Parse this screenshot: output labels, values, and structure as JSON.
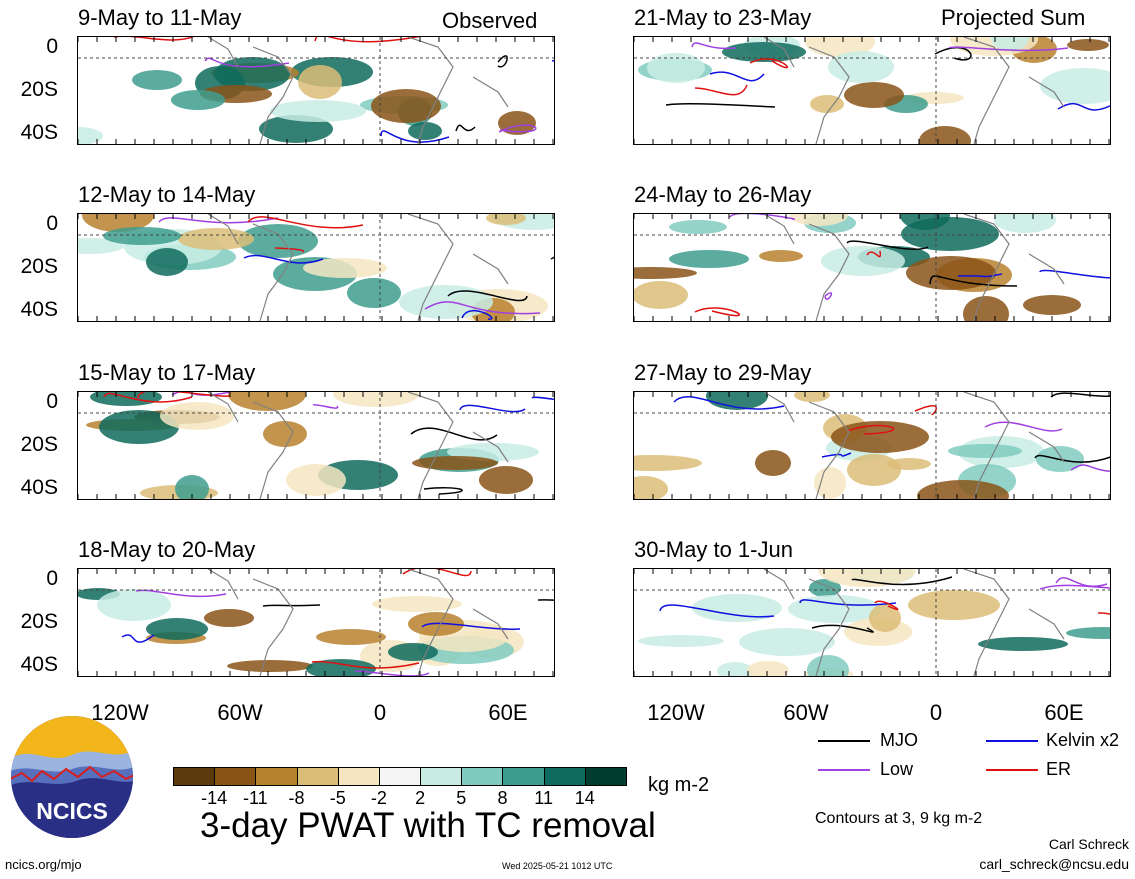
{
  "panels_left": [
    {
      "title": "9-May to 11-May",
      "tag": "Observed"
    },
    {
      "title": "12-May to 14-May",
      "tag": ""
    },
    {
      "title": "15-May to 17-May",
      "tag": ""
    },
    {
      "title": "18-May to 20-May",
      "tag": ""
    }
  ],
  "panels_right": [
    {
      "title": "21-May to 23-May",
      "tag": "Projected Sum"
    },
    {
      "title": "24-May to 26-May",
      "tag": ""
    },
    {
      "title": "27-May to 29-May",
      "tag": ""
    },
    {
      "title": "30-May to 1-Jun",
      "tag": ""
    }
  ],
  "lat_labels": [
    "0",
    "20S",
    "40S"
  ],
  "lon_labels": [
    "120W",
    "60W",
    "0",
    "60E"
  ],
  "legend": {
    "mjo": "MJO",
    "kelvin": "Kelvin x2",
    "low": "Low",
    "er": "ER",
    "colors": {
      "mjo": "#000000",
      "kelvin": "#1010e0",
      "low": "#a040e0",
      "er": "#e01010"
    }
  },
  "colorbar": {
    "ticks": [
      "-14",
      "-11",
      "-8",
      "-5",
      "-2",
      "2",
      "5",
      "8",
      "11",
      "14"
    ],
    "colors": [
      "#5c3a0e",
      "#8a5417",
      "#b8812e",
      "#dcbd78",
      "#f5e6c2",
      "#f5f5f5",
      "#c8ece4",
      "#80cbbf",
      "#3e9e8e",
      "#0f6b5d",
      "#003c30"
    ],
    "units": "kg m-2"
  },
  "main_title": "3-day PWAT with TC removal",
  "contours_note": "Contours at 3, 9 kg m-2",
  "logo_text": "NCICS",
  "footer": {
    "url": "ncics.org/mjo",
    "timestamp": "Wed 2025-05-21 1012 UTC",
    "author": "Carl Schreck",
    "email": "carl_schreck@ncsu.edu"
  }
}
